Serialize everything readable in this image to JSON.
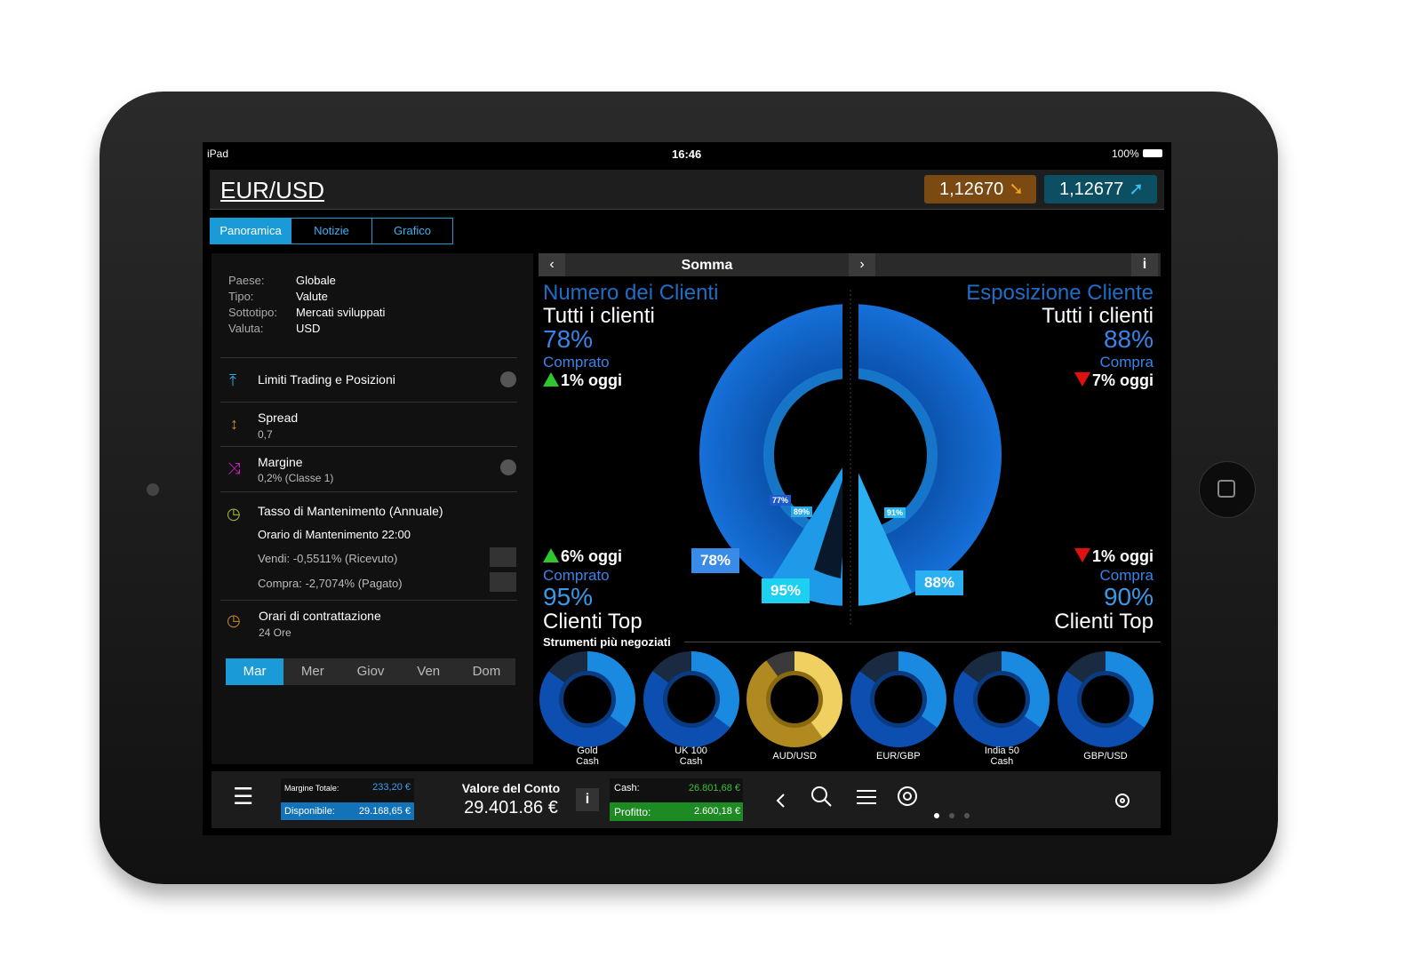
{
  "status_bar": {
    "device": "iPad",
    "time": "16:46",
    "battery": "100%"
  },
  "header": {
    "symbol": "EUR/USD",
    "sell_price": "1,12670",
    "buy_price": "1,12677"
  },
  "tabs": [
    "Panoramica",
    "Notizie",
    "Grafico"
  ],
  "details": [
    {
      "label": "Paese:",
      "value": "Globale"
    },
    {
      "label": "Tipo:",
      "value": "Valute"
    },
    {
      "label": "Sottotipo:",
      "value": "Mercati sviluppati"
    },
    {
      "label": "Valuta:",
      "value": "USD"
    }
  ],
  "menu": {
    "limits": "Limiti Trading e Posizioni",
    "spread": {
      "title": "Spread",
      "value": "0,7"
    },
    "margin": {
      "title": "Margine",
      "value": "0,2% (Classe 1)"
    },
    "rollover": {
      "title": "Tasso di Mantenimento (Annuale)",
      "time": "Orario di Mantenimento 22:00",
      "sell": "Vendi: -0,5511% (Ricevuto)",
      "buy": "Compra: -2,7074% (Pagato)"
    },
    "hours": {
      "title": "Orari di contrattazione",
      "value": "24 Ore"
    }
  },
  "days": [
    "Mar",
    "Mer",
    "Giov",
    "Ven",
    "Dom"
  ],
  "sentiment": {
    "title": "Somma",
    "left": {
      "heading": "Numero dei Clienti",
      "scope": "Tutti i clienti",
      "percent": "78%",
      "side": "Comprato",
      "change": "1% oggi",
      "top_change": "6% oggi",
      "top_side": "Comprato",
      "top_percent": "95%",
      "top_scope": "Clienti Top"
    },
    "right": {
      "heading": "Esposizione Cliente",
      "scope": "Tutti i clienti",
      "percent": "88%",
      "side": "Compra",
      "change": "7% oggi",
      "top_change": "1% oggi",
      "top_side": "Compra",
      "top_percent": "90%",
      "top_scope": "Clienti Top"
    },
    "ring_labels": [
      "77%",
      "89%",
      "78%",
      "95%",
      "91%",
      "88%"
    ]
  },
  "instruments": {
    "title": "Strumenti più negoziati",
    "items": [
      [
        "Gold",
        "Cash"
      ],
      [
        "UK 100",
        "Cash"
      ],
      [
        "AUD/USD"
      ],
      [
        "EUR/GBP"
      ],
      [
        "India 50",
        "Cash"
      ],
      [
        "GBP/USD"
      ]
    ]
  },
  "footer": {
    "margin_label": "Margine Totale:",
    "margin_value": "233,20 €",
    "available_label": "Disponibile:",
    "available_value": "29.168,65 €",
    "account_label": "Valore del Conto",
    "account_value": "29.401.86 €",
    "cash_label": "Cash:",
    "cash_value": "26.801,68 €",
    "profit_label": "Profitto:",
    "profit_value": "2.600,18 €"
  }
}
